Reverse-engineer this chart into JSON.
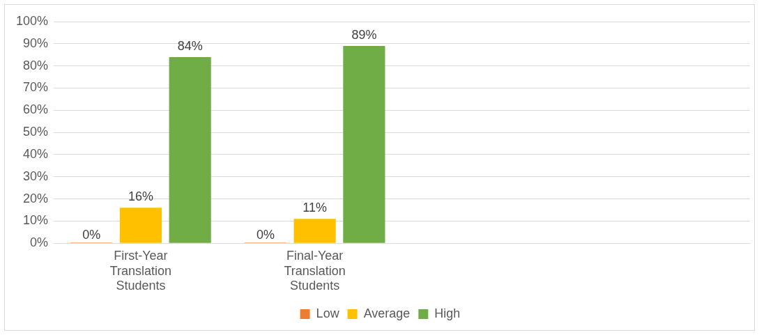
{
  "chart_data": {
    "type": "bar",
    "categories": [
      "First-Year Translation Students",
      "Final-Year Translation Students",
      null,
      null
    ],
    "series": [
      {
        "name": "Low",
        "color": "#ed7d31",
        "values": [
          0,
          0,
          null,
          null
        ],
        "value_labels": [
          "0%",
          "0%",
          null,
          null
        ]
      },
      {
        "name": "Average",
        "color": "#ffc000",
        "values": [
          16,
          11,
          null,
          null
        ],
        "value_labels": [
          "16%",
          "11%",
          null,
          null
        ]
      },
      {
        "name": "High",
        "color": "#70ad47",
        "values": [
          84,
          89,
          null,
          null
        ],
        "value_labels": [
          "84%",
          "89%",
          null,
          null
        ]
      }
    ],
    "ylim": [
      0,
      100
    ],
    "yticks": [
      {
        "value": 0,
        "label": "0%"
      },
      {
        "value": 10,
        "label": "10%"
      },
      {
        "value": 20,
        "label": "20%"
      },
      {
        "value": 30,
        "label": "30%"
      },
      {
        "value": 40,
        "label": "40%"
      },
      {
        "value": 50,
        "label": "50%"
      },
      {
        "value": 60,
        "label": "60%"
      },
      {
        "value": 70,
        "label": "70%"
      },
      {
        "value": 80,
        "label": "80%"
      },
      {
        "value": 90,
        "label": "90%"
      },
      {
        "value": 100,
        "label": "100%"
      }
    ],
    "grid": "y",
    "legend": "bottom"
  }
}
